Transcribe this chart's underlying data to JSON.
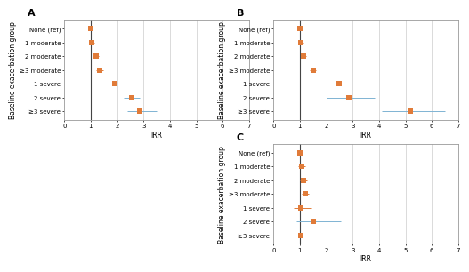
{
  "panels": [
    {
      "label": "A",
      "xlabel": "IRR",
      "ylabel": "Baseline exacerbation group",
      "categories": [
        "None (ref)",
        "1 moderate",
        "2 moderate",
        "≥3 moderate",
        "1 severe",
        "2 severe",
        "≥3 severe"
      ],
      "irr": [
        1.0,
        1.05,
        1.2,
        1.35,
        1.9,
        2.55,
        2.85
      ],
      "ci_low": [
        null,
        0.97,
        1.1,
        1.22,
        1.78,
        2.25,
        2.4
      ],
      "ci_hi": [
        null,
        1.13,
        1.3,
        1.48,
        2.02,
        2.85,
        3.5
      ],
      "ref_line": 1.0,
      "xlim": [
        0,
        7
      ],
      "xticks": [
        0,
        1,
        2,
        3,
        4,
        5,
        6,
        7
      ],
      "ci_colors": [
        "#E07B39",
        "#E07B39",
        "#E07B39",
        "#E07B39",
        "#7FB3D3",
        "#7FB3D3"
      ]
    },
    {
      "label": "B",
      "xlabel": "IRR",
      "ylabel": "Baseline exacerbation group",
      "categories": [
        "None (ref)",
        "1 moderate",
        "2 moderate",
        "≥3 moderate",
        "1 severe",
        "2 severe",
        "≥3 severe"
      ],
      "irr": [
        1.0,
        1.05,
        1.15,
        1.5,
        2.5,
        2.85,
        5.2
      ],
      "ci_low": [
        null,
        0.98,
        1.07,
        1.38,
        2.2,
        2.0,
        4.1
      ],
      "ci_hi": [
        null,
        1.13,
        1.25,
        1.62,
        2.82,
        3.85,
        6.5
      ],
      "ref_line": 1.0,
      "xlim": [
        0,
        7
      ],
      "xticks": [
        0,
        1,
        2,
        3,
        4,
        5,
        6,
        7
      ],
      "ci_colors": [
        "#E07B39",
        "#E07B39",
        "#E07B39",
        "#E07B39",
        "#7FB3D3",
        "#7FB3D3"
      ]
    },
    {
      "label": "C",
      "xlabel": "IRR",
      "ylabel": "Baseline exacerbation group",
      "categories": [
        "None (ref)",
        "1 moderate",
        "2 moderate",
        "≥3 moderate",
        "1 severe",
        "2 severe",
        "≥3 severe"
      ],
      "irr": [
        1.0,
        1.08,
        1.12,
        1.2,
        1.05,
        1.5,
        1.05
      ],
      "ci_low": [
        null,
        0.95,
        1.0,
        1.08,
        0.75,
        0.85,
        0.45
      ],
      "ci_hi": [
        null,
        1.22,
        1.26,
        1.35,
        1.45,
        2.55,
        2.85
      ],
      "ref_line": 1.0,
      "xlim": [
        0,
        7
      ],
      "xticks": [
        0,
        1,
        2,
        3,
        4,
        5,
        6,
        7
      ],
      "ci_colors": [
        "#E07B39",
        "#E07B39",
        "#E07B39",
        "#E07B39",
        "#7FB3D3",
        "#7FB3D3"
      ]
    }
  ],
  "fig_bg": "#FFFFFF",
  "panel_bg": "#FFFFFF",
  "border_color": "#999999",
  "dot_color": "#E07B39",
  "none_ref_color": "#E07B39",
  "label_fontsize": 8,
  "axis_label_fontsize": 5.5,
  "tick_fontsize": 5.0,
  "dot_size": 14,
  "lw_ci": 0.7,
  "lw_ref": 0.8,
  "grid_color": "#CCCCCC",
  "grid_lw": 0.5
}
